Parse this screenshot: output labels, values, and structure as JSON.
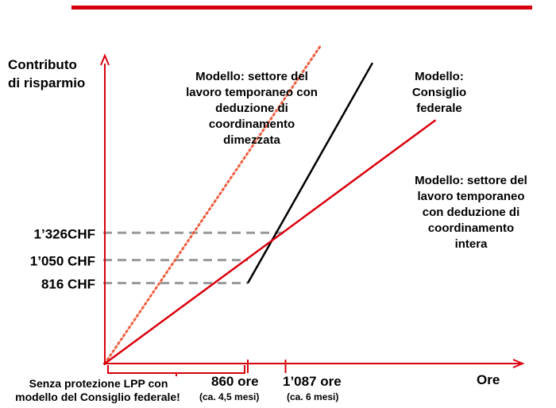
{
  "colors": {
    "axis": "#d9000d",
    "top_rule": "#d9000d",
    "line_red": "#d9000d",
    "line_black": "#000000",
    "dotted": "#ee6040",
    "dashed": "#999999",
    "text": "#000000"
  },
  "chart_data": {
    "type": "line",
    "title": "",
    "ylabel": [
      "Contributo",
      "di risparmio"
    ],
    "xlabel": "Ore",
    "grid": false,
    "y_reference_labels": [
      {
        "label": "1’326CHF",
        "value": 1326
      },
      {
        "label": "1’050 CHF",
        "value": 1050
      },
      {
        "label": "816 CHF",
        "value": 816
      }
    ],
    "x_reference_labels": [
      {
        "label": "860 ore",
        "sublabel": "(ca. 4,5 mesi)",
        "value": 860
      },
      {
        "label": "1’087 ore",
        "sublabel": "(ca. 6 mesi)",
        "value": 1087
      }
    ],
    "bracket_note": [
      "Senza protezione LPP con",
      "modello del Consiglio federale!"
    ],
    "series": [
      {
        "key": "halved",
        "style": "dotted",
        "annotation": [
          "Modello: settore del",
          "lavoro temporaneo con",
          "deduzione di",
          "coordinamento",
          "dimezzata"
        ],
        "points": [
          [
            0,
            0
          ],
          [
            1300,
            3230
          ]
        ]
      },
      {
        "key": "federal",
        "style": "solid-black",
        "annotation": [
          "Modello:",
          "Consiglio",
          "federale"
        ],
        "points": [
          [
            860,
            816
          ],
          [
            1610,
            3050
          ]
        ]
      },
      {
        "key": "full",
        "style": "solid-red",
        "annotation": [
          "Modello: settore del",
          "lavoro temporaneo",
          "con deduzione di",
          "coordinamento",
          "intera"
        ],
        "points": [
          [
            0,
            0
          ],
          [
            1990,
            2470
          ]
        ]
      }
    ]
  }
}
